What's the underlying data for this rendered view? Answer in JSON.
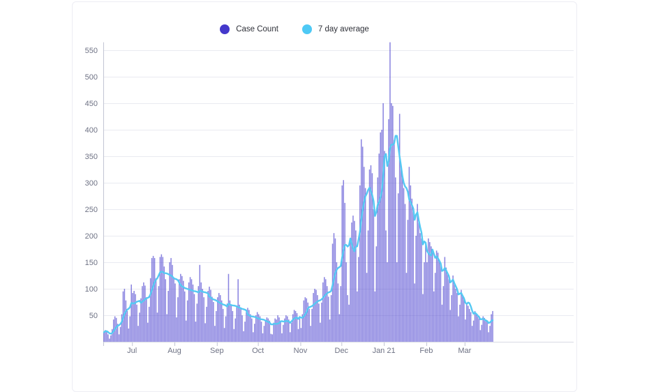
{
  "legend": [
    {
      "label": "Case Count",
      "color": "#4438cb"
    },
    {
      "label": "7 day average",
      "color": "#4ec9f5"
    }
  ],
  "chart_data": {
    "type": "bar",
    "title": "",
    "xlabel": "",
    "ylabel": "",
    "y_ticks": [
      50,
      100,
      150,
      200,
      250,
      300,
      350,
      400,
      450,
      500,
      550
    ],
    "ylim": [
      0,
      570
    ],
    "grid": true,
    "legend_position": "top-center",
    "month_ticks": [
      {
        "label": "Jul",
        "day": 21
      },
      {
        "label": "Aug",
        "day": 52
      },
      {
        "label": "Sep",
        "day": 83
      },
      {
        "label": "Oct",
        "day": 113
      },
      {
        "label": "Nov",
        "day": 144
      },
      {
        "label": "Dec",
        "day": 174
      },
      {
        "label": "Jan 21",
        "day": 205
      },
      {
        "label": "Feb",
        "day": 236
      },
      {
        "label": "Mar",
        "day": 264
      }
    ],
    "series": [
      {
        "name": "Case Count",
        "type": "bar",
        "color": "#4c42cf",
        "values": [
          18,
          22,
          20,
          14,
          6,
          12,
          24,
          42,
          48,
          45,
          34,
          14,
          28,
          52,
          95,
          100,
          78,
          58,
          25,
          48,
          108,
          92,
          96,
          90,
          70,
          30,
          55,
          82,
          105,
          112,
          106,
          84,
          36,
          66,
          120,
          158,
          162,
          158,
          120,
          55,
          105,
          160,
          165,
          160,
          142,
          118,
          52,
          96,
          150,
          158,
          145,
          120,
          110,
          46,
          84,
          118,
          128,
          124,
          115,
          95,
          40,
          78,
          112,
          122,
          118,
          108,
          90,
          38,
          72,
          105,
          145,
          112,
          100,
          84,
          35,
          66,
          96,
          104,
          98,
          85,
          75,
          30,
          58,
          84,
          92,
          88,
          78,
          62,
          26,
          48,
          72,
          128,
          78,
          70,
          58,
          24,
          44,
          66,
          118,
          70,
          62,
          50,
          20,
          38,
          56,
          64,
          60,
          52,
          44,
          18,
          34,
          50,
          56,
          52,
          48,
          38,
          16,
          30,
          40,
          46,
          44,
          40,
          15,
          14,
          36,
          44,
          42,
          50,
          46,
          38,
          16,
          32,
          44,
          50,
          48,
          42,
          18,
          36,
          52,
          60,
          58,
          54,
          24,
          44,
          26,
          52,
          78,
          84,
          82,
          74,
          62,
          30,
          62,
          92,
          100,
          98,
          88,
          72,
          36,
          74,
          112,
          122,
          118,
          105,
          85,
          42,
          88,
          185,
          205,
          195,
          150,
          110,
          52,
          105,
          295,
          305,
          262,
          150,
          88,
          70,
          195,
          225,
          238,
          228,
          210,
          95,
          160,
          295,
          382,
          368,
          330,
          290,
          130,
          210,
          325,
          333,
          318,
          250,
          95,
          180,
          310,
          355,
          395,
          400,
          450,
          360,
          210,
          150,
          420,
          565,
          450,
          445,
          380,
          310,
          150,
          280,
          430,
          330,
          310,
          290,
          260,
          130,
          230,
          330,
          295,
          270,
          245,
          110,
          200,
          260,
          225,
          205,
          195,
          90,
          150,
          185,
          150,
          195,
          188,
          180,
          170,
          95,
          130,
          172,
          168,
          155,
          145,
          70,
          105,
          160,
          140,
          130,
          118,
          60,
          88,
          125,
          112,
          100,
          92,
          48,
          70,
          98,
          88,
          80,
          42,
          72,
          68,
          62,
          56,
          30,
          40,
          58,
          54,
          48,
          44,
          22,
          32,
          48,
          45,
          42,
          40,
          18,
          30,
          52,
          58
        ]
      },
      {
        "name": "7 day average",
        "type": "line",
        "color": "#55c9f3",
        "derived_from": "Case Count",
        "window": 7
      }
    ]
  },
  "style": {
    "grid_color": "#e9eaf1",
    "baseline_color": "#d8dae4",
    "axis_color": "#c2c5d3",
    "tick_text_color": "#6e7284",
    "bar_opacity": 0.65
  }
}
